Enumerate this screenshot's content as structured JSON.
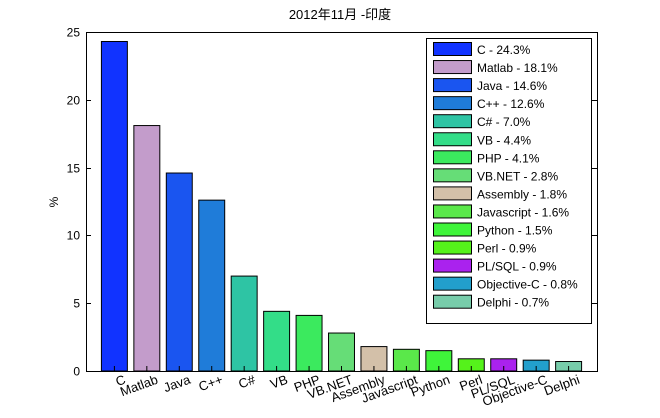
{
  "chart_data": {
    "type": "bar",
    "title": "2012年11月 -印度",
    "xlabel": "",
    "ylabel": "%",
    "ylim": [
      0,
      25
    ],
    "yticks": [
      0,
      5,
      10,
      15,
      20,
      25
    ],
    "grid": false,
    "legend_position": "top-right",
    "categories": [
      "C",
      "Matlab",
      "Java",
      "C++",
      "C#",
      "VB",
      "PHP",
      "VB.NET",
      "Assembly",
      "Javascript",
      "Python",
      "Perl",
      "PL/SQL",
      "Objective-C",
      "Delphi"
    ],
    "values": [
      24.3,
      18.1,
      14.6,
      12.6,
      7.0,
      4.4,
      4.1,
      2.8,
      1.8,
      1.6,
      1.5,
      0.9,
      0.9,
      0.8,
      0.7
    ],
    "colors": [
      "#1133ff",
      "#c39ccb",
      "#1a55f0",
      "#1f7cd9",
      "#2ec4a4",
      "#33dd88",
      "#3bea5e",
      "#66dd77",
      "#d3c0a9",
      "#5ae84a",
      "#3ff53a",
      "#55f21b",
      "#aa22ee",
      "#229fcc",
      "#77ccaa"
    ],
    "legend": [
      "C - 24.3%",
      "Matlab - 18.1%",
      "Java - 14.6%",
      "C++ - 12.6%",
      "C# - 7.0%",
      "VB - 4.4%",
      "PHP - 4.1%",
      "VB.NET - 2.8%",
      "Assembly - 1.8%",
      "Javascript - 1.6%",
      "Python - 1.5%",
      "Perl - 0.9%",
      "PL/SQL - 0.9%",
      "Objective-C - 0.8%",
      "Delphi - 0.7%"
    ]
  }
}
